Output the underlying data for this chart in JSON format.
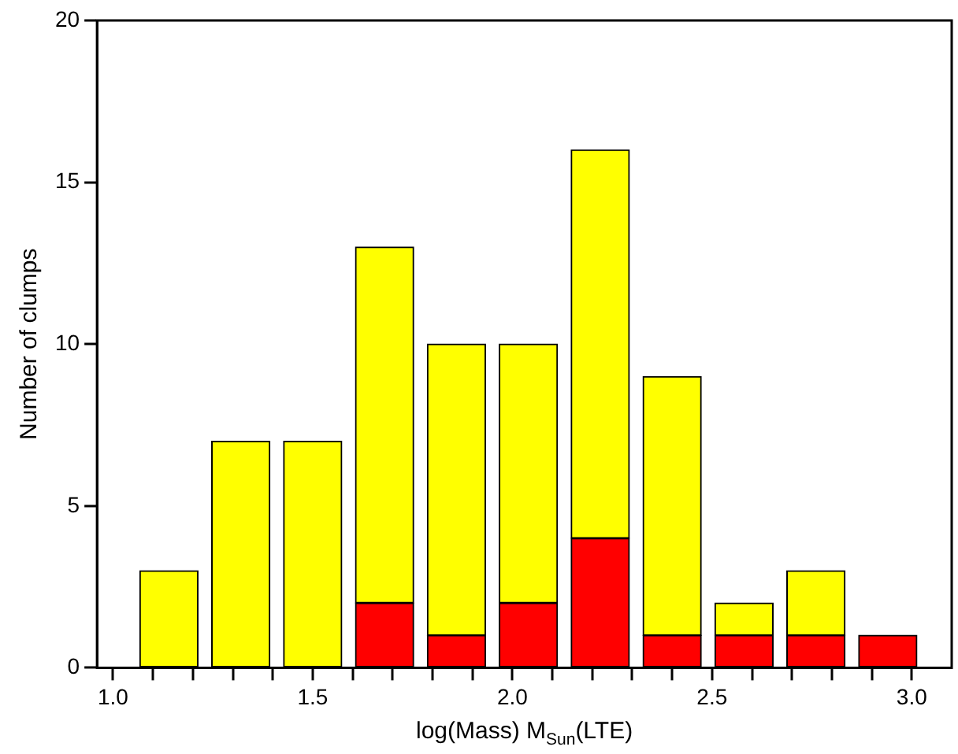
{
  "chart_data": {
    "type": "bar",
    "xlabel": "log(Mass) M$_{Sun}$(LTE)",
    "ylabel": "Number of clumps",
    "x": [
      1.14,
      1.32,
      1.5,
      1.68,
      1.86,
      2.04,
      2.22,
      2.4,
      2.58,
      2.76,
      2.94
    ],
    "series": [
      {
        "color": "#ff0000",
        "values": [
          0,
          0,
          0,
          2,
          1,
          2,
          4,
          1,
          1,
          1,
          1
        ]
      },
      {
        "color": "#ffff00",
        "values": [
          3,
          7,
          7,
          11,
          9,
          8,
          12,
          8,
          1,
          2,
          0
        ]
      }
    ],
    "stacked": true,
    "xlim": [
      0.96,
      3.1
    ],
    "xticks": [
      {
        "value": 1,
        "label": "1.0"
      },
      {
        "value": 1.1,
        "label": null
      },
      {
        "value": 1.2,
        "label": null
      },
      {
        "value": 1.3,
        "label": null
      },
      {
        "value": 1.4,
        "label": null
      },
      {
        "value": 1.5,
        "label": "1.5"
      },
      {
        "value": 1.6,
        "label": null
      },
      {
        "value": 1.7,
        "label": null
      },
      {
        "value": 1.8,
        "label": null
      },
      {
        "value": 1.9,
        "label": null
      },
      {
        "value": 2,
        "label": "2.0"
      },
      {
        "value": 2.1,
        "label": null
      },
      {
        "value": 2.2,
        "label": null
      },
      {
        "value": 2.3,
        "label": null
      },
      {
        "value": 2.4,
        "label": null
      },
      {
        "value": 2.5,
        "label": "2.5"
      },
      {
        "value": 2.6,
        "label": null
      },
      {
        "value": 2.7,
        "label": null
      },
      {
        "value": 2.8,
        "label": null
      },
      {
        "value": 2.9,
        "label": null
      },
      {
        "value": 3,
        "label": "3.0"
      }
    ],
    "ylim": [
      0,
      20
    ],
    "yticks": [
      0,
      5,
      10,
      15,
      20
    ],
    "grid": false,
    "legend": false
  }
}
